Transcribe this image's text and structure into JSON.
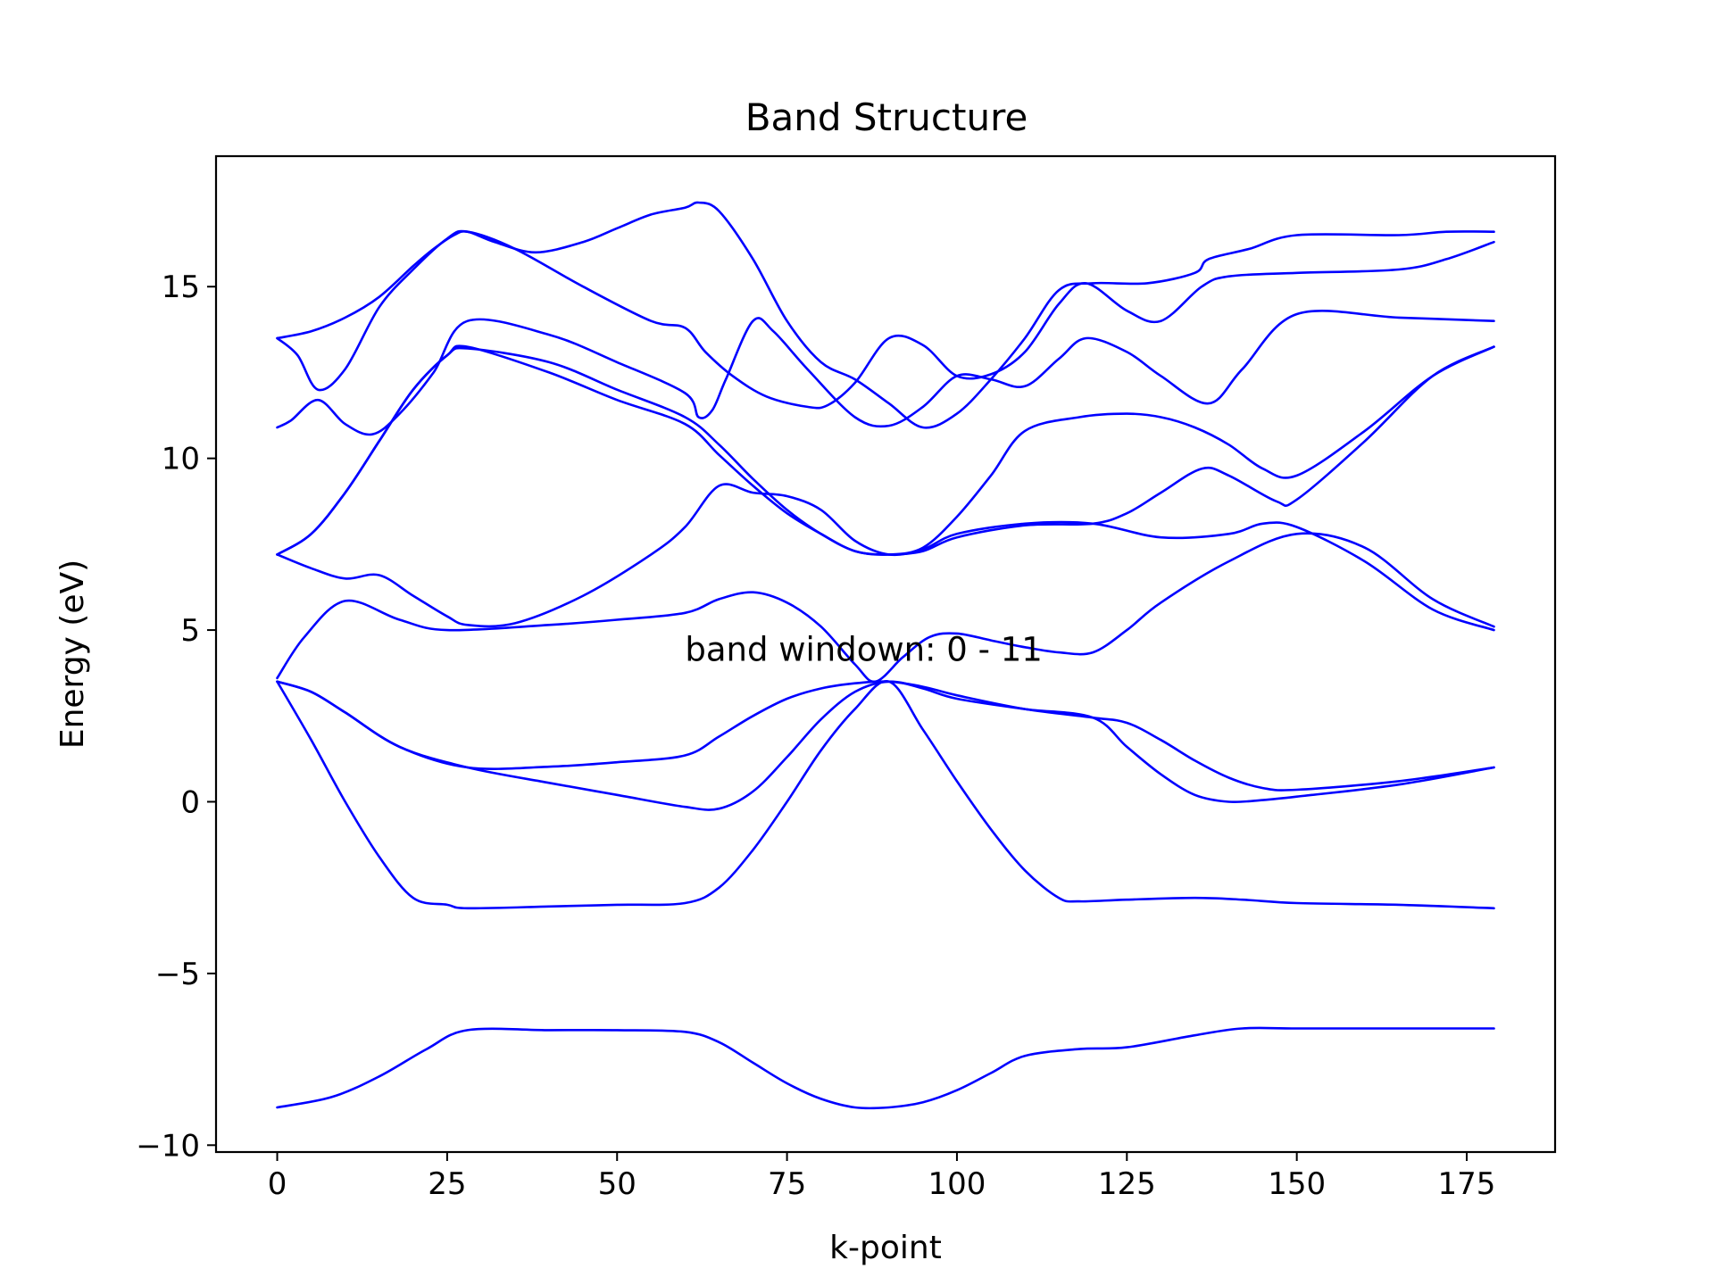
{
  "chart_data": {
    "type": "line",
    "title": "Band Structure",
    "xlabel": "k-point",
    "ylabel": "Energy (eV)",
    "xlim": [
      -9,
      188
    ],
    "ylim": [
      -10.2,
      18.8
    ],
    "xticks": [
      0,
      25,
      50,
      75,
      100,
      125,
      150,
      175
    ],
    "xtick_labels": [
      "0",
      "25",
      "50",
      "75",
      "100",
      "125",
      "150",
      "175"
    ],
    "yticks": [
      -10,
      -5,
      0,
      5,
      10,
      15
    ],
    "ytick_labels": [
      "−10",
      "−5",
      "0",
      "5",
      "10",
      "15"
    ],
    "grid": false,
    "legend": "none",
    "line_color": "#0000ff",
    "annotation": {
      "text": "band windown: 0 - 11",
      "x": 60,
      "y": 4.1
    },
    "series": [
      {
        "x": [
          0,
          8,
          15,
          22,
          28,
          40,
          50,
          60,
          65,
          70,
          75,
          80,
          85,
          90,
          95,
          100,
          105,
          110,
          118,
          125,
          135,
          142,
          150,
          165,
          179
        ],
        "y": [
          -8.9,
          -8.6,
          -8.0,
          -7.2,
          -6.65,
          -6.65,
          -6.65,
          -6.7,
          -7.0,
          -7.6,
          -8.2,
          -8.65,
          -8.9,
          -8.9,
          -8.75,
          -8.4,
          -7.9,
          -7.4,
          -7.2,
          -7.15,
          -6.8,
          -6.6,
          -6.6,
          -6.6,
          -6.6
        ]
      },
      {
        "x": [
          0,
          5,
          10,
          15,
          20,
          25,
          28,
          40,
          50,
          60,
          65,
          70,
          75,
          80,
          85,
          90,
          95,
          100,
          105,
          110,
          115,
          118,
          125,
          135,
          142,
          150,
          165,
          179
        ],
        "y": [
          3.5,
          1.8,
          0.0,
          -1.6,
          -2.8,
          -3.0,
          -3.1,
          -3.05,
          -3.0,
          -2.95,
          -2.5,
          -1.4,
          0.0,
          1.5,
          2.7,
          3.5,
          2.1,
          0.6,
          -0.8,
          -2.0,
          -2.8,
          -2.9,
          -2.85,
          -2.8,
          -2.85,
          -2.95,
          -3.0,
          -3.1
        ]
      },
      {
        "x": [
          0,
          5,
          10,
          18,
          28,
          40,
          50,
          60,
          65,
          70,
          75,
          80,
          85,
          90,
          95,
          100,
          110,
          120,
          125,
          130,
          135,
          140,
          145,
          150,
          165,
          179
        ],
        "y": [
          3.5,
          3.2,
          2.6,
          1.6,
          1.0,
          0.55,
          0.2,
          -0.15,
          -0.2,
          0.3,
          1.3,
          2.4,
          3.2,
          3.5,
          3.3,
          3.0,
          2.7,
          2.45,
          1.6,
          0.8,
          0.2,
          0.0,
          0.05,
          0.15,
          0.5,
          1.0
        ]
      },
      {
        "x": [
          0,
          5,
          10,
          18,
          28,
          40,
          50,
          60,
          65,
          70,
          75,
          80,
          85,
          90,
          95,
          100,
          110,
          120,
          125,
          130,
          135,
          140,
          145,
          150,
          165,
          179
        ],
        "y": [
          3.5,
          3.2,
          2.6,
          1.6,
          1.0,
          1.02,
          1.15,
          1.35,
          1.9,
          2.5,
          3.0,
          3.3,
          3.45,
          3.5,
          3.35,
          3.1,
          2.7,
          2.45,
          2.3,
          1.8,
          1.2,
          0.7,
          0.4,
          0.35,
          0.6,
          1.0
        ]
      },
      {
        "x": [
          0,
          4,
          10,
          18,
          25,
          40,
          50,
          60,
          65,
          70,
          75,
          80,
          85,
          88,
          92,
          96,
          100,
          105,
          110,
          115,
          120,
          125,
          130,
          140,
          150,
          160,
          170,
          179
        ],
        "y": [
          3.6,
          4.8,
          5.85,
          5.3,
          5.0,
          5.15,
          5.3,
          5.5,
          5.9,
          6.1,
          5.8,
          5.1,
          4.0,
          3.5,
          4.2,
          4.8,
          4.9,
          4.7,
          4.5,
          4.35,
          4.35,
          5.0,
          5.8,
          7.0,
          7.8,
          7.4,
          5.9,
          5.1
        ]
      },
      {
        "x": [
          0,
          5,
          10,
          15,
          20,
          25,
          28,
          35,
          45,
          55,
          60,
          65,
          70,
          75,
          80,
          85,
          90,
          95,
          100,
          110,
          120,
          130,
          140,
          145,
          150,
          160,
          170,
          179
        ],
        "y": [
          7.2,
          6.8,
          6.5,
          6.6,
          6.0,
          5.4,
          5.15,
          5.2,
          6.0,
          7.2,
          8.0,
          9.2,
          9.0,
          8.9,
          8.5,
          7.6,
          7.2,
          7.35,
          7.8,
          8.1,
          8.1,
          7.7,
          7.8,
          8.1,
          8.0,
          7.0,
          5.6,
          5.0
        ]
      },
      {
        "x": [
          0,
          5,
          10,
          15,
          20,
          25,
          28,
          40,
          50,
          60,
          65,
          70,
          75,
          80,
          85,
          90,
          95,
          100,
          110,
          120,
          125,
          130,
          136,
          140,
          147,
          150,
          160,
          170,
          179
        ],
        "y": [
          7.2,
          7.8,
          9.0,
          10.5,
          12.0,
          13.0,
          13.25,
          12.5,
          11.7,
          11.0,
          10.1,
          9.2,
          8.4,
          7.8,
          7.3,
          7.2,
          7.3,
          7.7,
          8.05,
          8.1,
          8.4,
          9.0,
          9.7,
          9.5,
          8.75,
          8.8,
          10.5,
          12.4,
          13.25
        ]
      },
      {
        "x": [
          0,
          5,
          10,
          15,
          20,
          25,
          28,
          40,
          50,
          60,
          65,
          70,
          75,
          80,
          85,
          90,
          95,
          100,
          105,
          110,
          118,
          125,
          130,
          135,
          140,
          145,
          150,
          160,
          170,
          179
        ],
        "y": [
          7.2,
          7.8,
          9.0,
          10.5,
          12.0,
          13.0,
          13.2,
          12.8,
          12.0,
          11.2,
          10.4,
          9.4,
          8.5,
          7.8,
          7.3,
          7.2,
          7.4,
          8.3,
          9.5,
          10.8,
          11.2,
          11.3,
          11.2,
          10.9,
          10.4,
          9.7,
          9.5,
          10.8,
          12.4,
          13.25
        ]
      },
      {
        "x": [
          0,
          2,
          6,
          10,
          14,
          18,
          23,
          28,
          40,
          50,
          60,
          62,
          64,
          66,
          70,
          73,
          78,
          85,
          90,
          95,
          100,
          105,
          110,
          115,
          119,
          125,
          130,
          137,
          142,
          150,
          165,
          179
        ],
        "y": [
          10.9,
          11.1,
          11.7,
          11.0,
          10.7,
          11.3,
          12.5,
          14.0,
          13.6,
          12.8,
          11.9,
          11.2,
          11.4,
          12.3,
          14.0,
          13.7,
          12.6,
          11.2,
          10.95,
          11.5,
          12.4,
          12.3,
          12.1,
          12.9,
          13.5,
          13.1,
          12.4,
          11.6,
          12.6,
          14.2,
          14.1,
          14.0
        ]
      },
      {
        "x": [
          0,
          3,
          6,
          10,
          15,
          20,
          25,
          28,
          35,
          45,
          55,
          60,
          63,
          67,
          72,
          78,
          81,
          85,
          90,
          95,
          100,
          105,
          110,
          115,
          119,
          125,
          130,
          136,
          140,
          150,
          165,
          172,
          179
        ],
        "y": [
          13.5,
          13.0,
          12.0,
          12.6,
          14.4,
          15.5,
          16.4,
          16.6,
          16.1,
          15.0,
          14.0,
          13.8,
          13.1,
          12.4,
          11.8,
          11.5,
          11.55,
          12.2,
          13.5,
          13.3,
          12.4,
          12.45,
          13.1,
          14.5,
          15.1,
          14.3,
          14.0,
          15.0,
          15.3,
          15.4,
          15.5,
          15.8,
          16.3
        ]
      },
      {
        "x": [
          0,
          5,
          10,
          15,
          20,
          23,
          26,
          28,
          32,
          38,
          45,
          50,
          55,
          60,
          62,
          65,
          70,
          75,
          80,
          85,
          90,
          95,
          100,
          105,
          110,
          115,
          120,
          128,
          135,
          137,
          143,
          150,
          165,
          172,
          179
        ],
        "y": [
          13.5,
          13.7,
          14.1,
          14.7,
          15.6,
          16.1,
          16.5,
          16.6,
          16.3,
          16.0,
          16.3,
          16.7,
          17.1,
          17.3,
          17.45,
          17.2,
          15.8,
          14.0,
          12.8,
          12.3,
          11.6,
          10.9,
          11.3,
          12.3,
          13.5,
          14.9,
          15.1,
          15.1,
          15.4,
          15.8,
          16.1,
          16.5,
          16.5,
          16.6,
          16.6
        ]
      }
    ]
  }
}
